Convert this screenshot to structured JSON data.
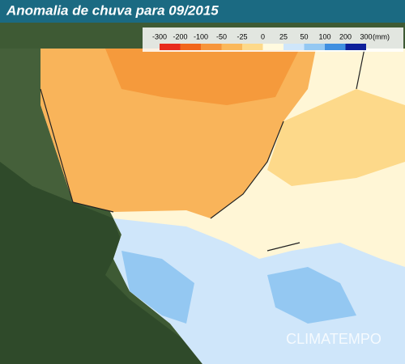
{
  "title": "Anomalia de chuva para 09/2015",
  "legend": {
    "ticks": [
      -300,
      -200,
      -100,
      -50,
      -25,
      0,
      25,
      50,
      100,
      200,
      300
    ],
    "unit": "(mm)",
    "colors": [
      "#e82a1c",
      "#f2661a",
      "#f7953a",
      "#fbb85a",
      "#fdd98a",
      "#fffadf",
      "#cfe6fa",
      "#94c8f2",
      "#3f8fe0",
      "#0d1f9a"
    ]
  },
  "watermark": "CLIMATEMPO"
}
